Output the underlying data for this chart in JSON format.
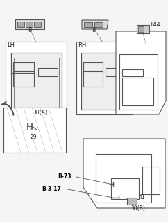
{
  "bg_color": "#f5f5f5",
  "line_color": "#555555",
  "text_color": "#222222",
  "bold_text_color": "#000000",
  "labels": {
    "lh": "LH",
    "rh": "RH",
    "8_left": "8",
    "8_right": "8",
    "144": "144",
    "30A": "30(A)",
    "29": "29",
    "30B": "30(B)",
    "41": "41",
    "b73": "B-73",
    "b317": "B-3-17"
  },
  "figsize": [
    2.42,
    3.2
  ],
  "dpi": 100
}
